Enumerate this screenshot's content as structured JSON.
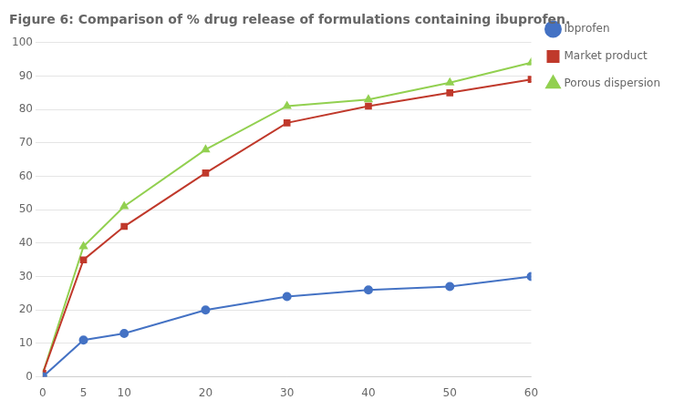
{
  "chart_data": {
    "type": "line",
    "title": "Figure 6: Comparison of % drug release of formulations containing ibuprofen.",
    "x": [
      0,
      5,
      10,
      20,
      30,
      40,
      50,
      60
    ],
    "series": [
      {
        "name": "Ibprofen",
        "color": "#4472C4",
        "marker": "circle",
        "values": [
          0,
          11,
          13,
          20,
          24,
          26,
          27,
          30
        ]
      },
      {
        "name": "Market product",
        "color": "#C0392B",
        "marker": "square",
        "values": [
          1,
          35,
          45,
          61,
          76,
          81,
          85,
          89
        ]
      },
      {
        "name": "Porous dispersion",
        "color": "#92D050",
        "marker": "triangle",
        "values": [
          1,
          39,
          51,
          68,
          81,
          83,
          88,
          94
        ]
      }
    ],
    "xlim": [
      0,
      60
    ],
    "xticks": [
      0,
      5,
      10,
      20,
      30,
      40,
      50,
      60
    ],
    "ylim": [
      0,
      100
    ],
    "yticks": [
      0,
      10,
      20,
      30,
      40,
      50,
      60,
      70,
      80,
      90,
      100
    ],
    "grid": true,
    "legend": "right"
  }
}
